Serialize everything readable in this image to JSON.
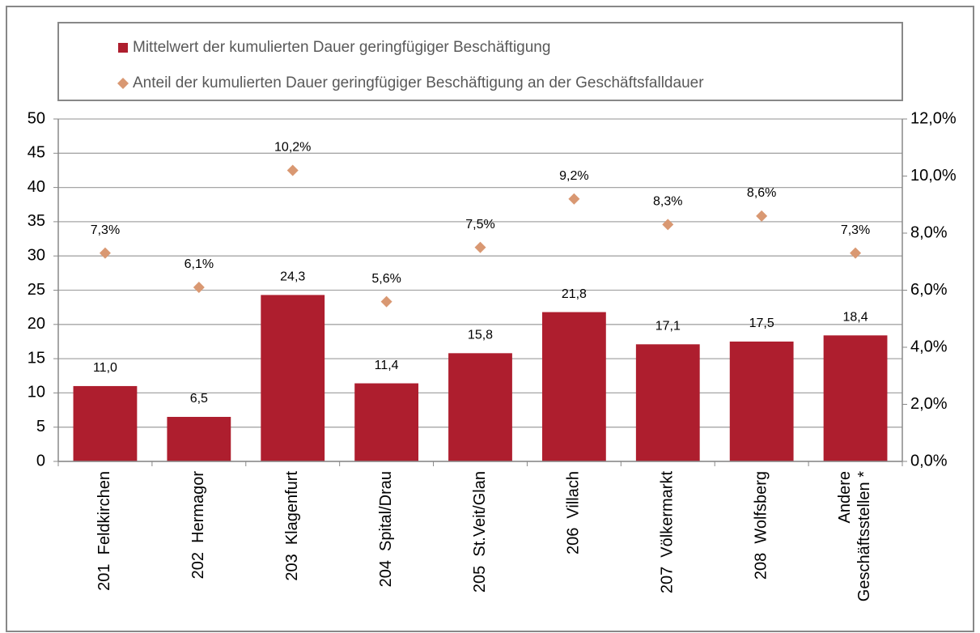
{
  "chart_data": {
    "type": "bar",
    "categories": [
      "201  Feldkirchen",
      "202  Hermagor",
      "203  Klagenfurt",
      "204  Spital/Drau",
      "205  St.Veit/Glan",
      "206  Villach",
      "207  Völkermarkt",
      "208  Wolfsberg",
      "Andere\nGeschäftsstellen *"
    ],
    "series": [
      {
        "name": "Mittelwert der kumulierten Dauer geringfügiger Beschäftigung",
        "type": "bar",
        "color": "#ae1e2e",
        "values": [
          11.0,
          6.5,
          24.3,
          11.4,
          15.8,
          21.8,
          17.1,
          17.5,
          18.4
        ],
        "value_labels": [
          "11,0",
          "6,5",
          "24,3",
          "11,4",
          "15,8",
          "21,8",
          "17,1",
          "17,5",
          "18,4"
        ]
      },
      {
        "name": "Anteil der kumulierten Dauer geringfügiger Beschäftigung an der Geschäftsfalldauer",
        "type": "scatter",
        "axis": "y2",
        "color": "#d99872",
        "values": [
          7.3,
          6.1,
          10.2,
          5.6,
          7.5,
          9.2,
          8.3,
          8.6,
          7.3
        ],
        "value_labels": [
          "7,3%",
          "6,1%",
          "10,2%",
          "5,6%",
          "7,5%",
          "9,2%",
          "8,3%",
          "8,6%",
          "7,3%"
        ]
      }
    ],
    "ylim": [
      0,
      50
    ],
    "yticks": [
      0,
      5,
      10,
      15,
      20,
      25,
      30,
      35,
      40,
      45,
      50
    ],
    "y2lim": [
      0,
      12
    ],
    "y2ticks": [
      {
        "value": 0,
        "label": "0,0%"
      },
      {
        "value": 2,
        "label": "2,0%"
      },
      {
        "value": 4,
        "label": "4,0%"
      },
      {
        "value": 6,
        "label": "6,0%"
      },
      {
        "value": 8,
        "label": "8,0%"
      },
      {
        "value": 10,
        "label": "10,0%"
      },
      {
        "value": 12,
        "label": "12,0%"
      }
    ],
    "grid": true,
    "legend": "top"
  }
}
